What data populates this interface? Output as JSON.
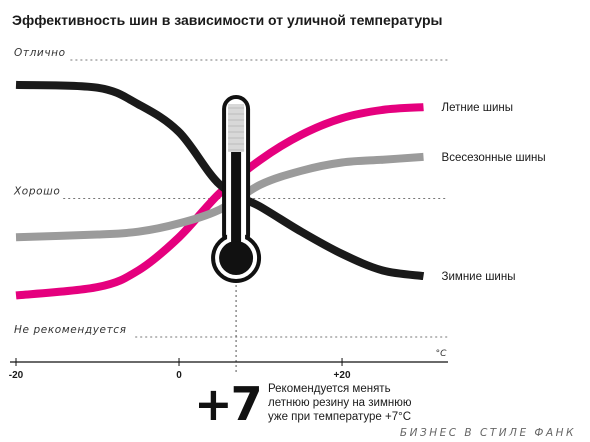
{
  "chart_data": {
    "type": "line",
    "title": "Эффективность шин в зависимости от уличной температуры",
    "levels": [
      {
        "label": "Отлично",
        "value": 100
      },
      {
        "label": "Хорошо",
        "value": 50
      },
      {
        "label": "Не рекомендуется",
        "value": 0
      }
    ],
    "x_ticks": [
      {
        "label": "-20",
        "value": -20
      },
      {
        "label": "0",
        "value": 0
      },
      {
        "label": "+20",
        "value": 20
      }
    ],
    "x_unit": "°C",
    "xlim": [
      -20,
      33
    ],
    "ylim": [
      0,
      100
    ],
    "series": [
      {
        "name": "Летние шины",
        "color": "#e5007e",
        "x": [
          -20,
          -10,
          -5,
          0,
          5,
          10,
          15,
          20,
          25,
          30
        ],
        "values": [
          15,
          18,
          24,
          36,
          52,
          64,
          73,
          79,
          82,
          83
        ]
      },
      {
        "name": "Всесезонные шины",
        "color": "#9b9b9b",
        "x": [
          -20,
          -10,
          -5,
          0,
          5,
          10,
          15,
          20,
          25,
          30
        ],
        "values": [
          36,
          37,
          38,
          41,
          46,
          55,
          60,
          63,
          64,
          65
        ]
      },
      {
        "name": "Зимние шины",
        "color": "#1a1a1a",
        "x": [
          -20,
          -10,
          -5,
          0,
          5,
          10,
          15,
          20,
          25,
          30
        ],
        "values": [
          91,
          90,
          84,
          74,
          55,
          47,
          38,
          30,
          24,
          22
        ]
      }
    ],
    "marker": {
      "x": 7,
      "label": "+7",
      "icon": "thermometer-icon"
    },
    "note_lines": [
      "Рекомендуется менять",
      "летнюю резину на зимнюю",
      "уже при температуре +7°С"
    ],
    "grid": false
  },
  "watermark": "БИЗНЕС В СТИЛЕ ФАНК"
}
